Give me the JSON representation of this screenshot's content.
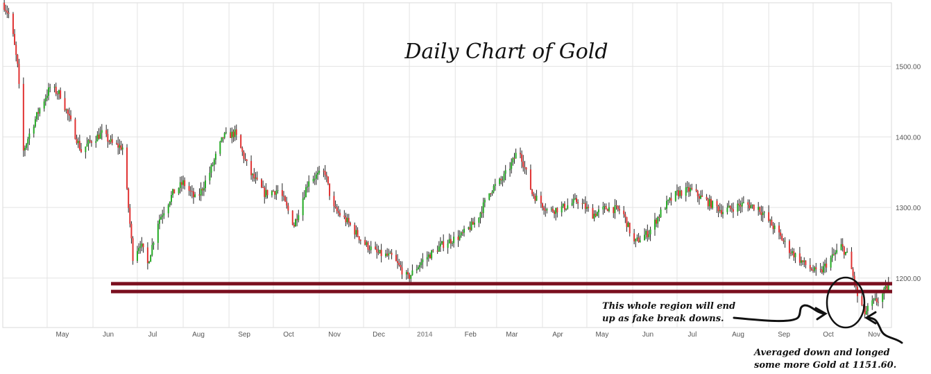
{
  "chart_data": {
    "type": "candlestick",
    "title": "Daily Chart of Gold",
    "xlabel": "",
    "ylabel": "",
    "ylim": [
      1130,
      1590
    ],
    "grid": true,
    "y_ticks": [
      "1500.00",
      "1400.00",
      "1300.00",
      "1200.00"
    ],
    "y_tick_values": [
      1500,
      1400,
      1300,
      1200
    ],
    "x_ticks": [
      "May",
      "Jun",
      "Jul",
      "Aug",
      "Sep",
      "Oct",
      "Nov",
      "Dec",
      "2014",
      "Feb",
      "Mar",
      "Apr",
      "May",
      "Jun",
      "Jul",
      "Aug",
      "Sep",
      "Oct",
      "Nov"
    ],
    "x_tick_dates": [
      "2013-05-01",
      "2013-06-01",
      "2013-07-01",
      "2013-08-01",
      "2013-09-01",
      "2013-10-01",
      "2013-11-01",
      "2013-12-01",
      "2014-01-01",
      "2014-02-01",
      "2014-03-01",
      "2014-04-01",
      "2014-05-01",
      "2014-06-01",
      "2014-07-01",
      "2014-08-01",
      "2014-09-01",
      "2014-10-01",
      "2014-11-01"
    ],
    "x_range": [
      "2013-04-01",
      "2014-11-23"
    ],
    "close_series": [
      [
        "2013-04-01",
        1590
      ],
      [
        "2013-04-06",
        1570
      ],
      [
        "2013-04-11",
        1500
      ],
      [
        "2013-04-15",
        1380
      ],
      [
        "2013-04-20",
        1410
      ],
      [
        "2013-04-26",
        1440
      ],
      [
        "2013-05-03",
        1470
      ],
      [
        "2013-05-10",
        1460
      ],
      [
        "2013-05-17",
        1420
      ],
      [
        "2013-05-24",
        1380
      ],
      [
        "2013-05-31",
        1395
      ],
      [
        "2013-06-07",
        1405
      ],
      [
        "2013-06-14",
        1390
      ],
      [
        "2013-06-21",
        1385
      ],
      [
        "2013-06-25",
        1300
      ],
      [
        "2013-06-28",
        1230
      ],
      [
        "2013-07-03",
        1250
      ],
      [
        "2013-07-08",
        1220
      ],
      [
        "2013-07-15",
        1280
      ],
      [
        "2013-07-25",
        1320
      ],
      [
        "2013-08-01",
        1335
      ],
      [
        "2013-08-10",
        1310
      ],
      [
        "2013-08-19",
        1350
      ],
      [
        "2013-08-28",
        1400
      ],
      [
        "2013-09-05",
        1405
      ],
      [
        "2013-09-15",
        1350
      ],
      [
        "2013-09-25",
        1320
      ],
      [
        "2013-10-05",
        1325
      ],
      [
        "2013-10-15",
        1275
      ],
      [
        "2013-10-25",
        1340
      ],
      [
        "2013-11-05",
        1350
      ],
      [
        "2013-11-10",
        1300
      ],
      [
        "2013-11-20",
        1280
      ],
      [
        "2013-12-01",
        1250
      ],
      [
        "2013-12-10",
        1235
      ],
      [
        "2013-12-20",
        1230
      ],
      [
        "2013-12-31",
        1200
      ],
      [
        "2014-01-10",
        1225
      ],
      [
        "2014-01-25",
        1250
      ],
      [
        "2014-02-05",
        1260
      ],
      [
        "2014-02-15",
        1280
      ],
      [
        "2014-02-25",
        1325
      ],
      [
        "2014-03-05",
        1340
      ],
      [
        "2014-03-12",
        1365
      ],
      [
        "2014-03-16",
        1385
      ],
      [
        "2014-03-25",
        1320
      ],
      [
        "2014-04-05",
        1295
      ],
      [
        "2014-04-15",
        1300
      ],
      [
        "2014-04-25",
        1310
      ],
      [
        "2014-05-05",
        1290
      ],
      [
        "2014-05-15",
        1300
      ],
      [
        "2014-05-25",
        1295
      ],
      [
        "2014-06-02",
        1250
      ],
      [
        "2014-06-12",
        1265
      ],
      [
        "2014-06-22",
        1300
      ],
      [
        "2014-07-01",
        1320
      ],
      [
        "2014-07-10",
        1325
      ],
      [
        "2014-07-20",
        1310
      ],
      [
        "2014-08-01",
        1295
      ],
      [
        "2014-08-15",
        1305
      ],
      [
        "2014-08-25",
        1300
      ],
      [
        "2014-09-05",
        1270
      ],
      [
        "2014-09-15",
        1240
      ],
      [
        "2014-09-25",
        1220
      ],
      [
        "2014-10-05",
        1205
      ],
      [
        "2014-10-10",
        1220
      ],
      [
        "2014-10-20",
        1245
      ],
      [
        "2014-10-25",
        1230
      ],
      [
        "2014-10-31",
        1175
      ],
      [
        "2014-11-05",
        1150
      ],
      [
        "2014-11-10",
        1165
      ],
      [
        "2014-11-15",
        1170
      ],
      [
        "2014-11-21",
        1190
      ]
    ],
    "annotations": [
      {
        "type": "horizontal-line",
        "value": 1192,
        "color": "#7a0f1f"
      },
      {
        "type": "horizontal-line",
        "value": 1181,
        "color": "#7a0f1f"
      },
      {
        "type": "circle",
        "center_date": "2014-11-06",
        "center_value": 1175
      },
      {
        "text_lines": [
          "This whole region will end",
          "up as fake break downs."
        ]
      },
      {
        "text_lines": [
          "Averaged down and longed",
          "some more Gold at 1151.60."
        ]
      }
    ],
    "colors": {
      "up": "#22aa22",
      "down": "#e03131",
      "lines": "#7a0f1f",
      "grid": "#e3e3e3"
    }
  }
}
